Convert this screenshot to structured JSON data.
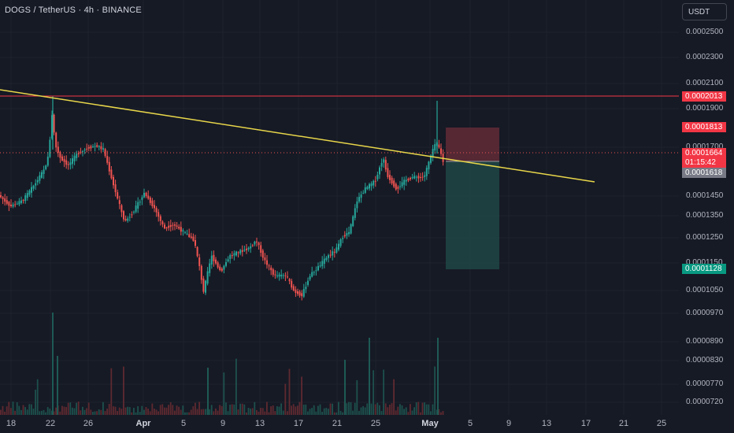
{
  "header": {
    "symbol_title": "DOGS / TetherUS · 4h · BINANCE",
    "currency_button": "USDT"
  },
  "price_axis": {
    "ticks": [
      "0.0002500",
      "0.0002300",
      "0.0002100",
      "0.0001900",
      "0.0001700",
      "0.0001450",
      "0.0001350",
      "0.0001250",
      "0.0001150",
      "0.0001050",
      "0.0000970",
      "0.0000890",
      "0.0000830",
      "0.0000770",
      "0.0000720"
    ]
  },
  "time_axis": {
    "labels": [
      "18",
      "22",
      "26",
      "Apr",
      "5",
      "9",
      "13",
      "17",
      "21",
      "25",
      "May",
      "5",
      "9",
      "13",
      "17",
      "21",
      "25"
    ]
  },
  "badges": {
    "resistance_price": "0.0002013",
    "stop_price": "0.0001813",
    "last_price": "0.0001664",
    "countdown": "01:15:42",
    "entry_price": "0.0001618",
    "target_price": "0.0001128"
  },
  "colors": {
    "background": "#161a25",
    "up": "#26a69a",
    "down": "#ef5350",
    "trendline": "#e8d64a",
    "resistance": "#f23645",
    "stop_zone": "#5c2a36",
    "target_zone": "#1f4745",
    "entry_badge": "#787b86"
  }
}
